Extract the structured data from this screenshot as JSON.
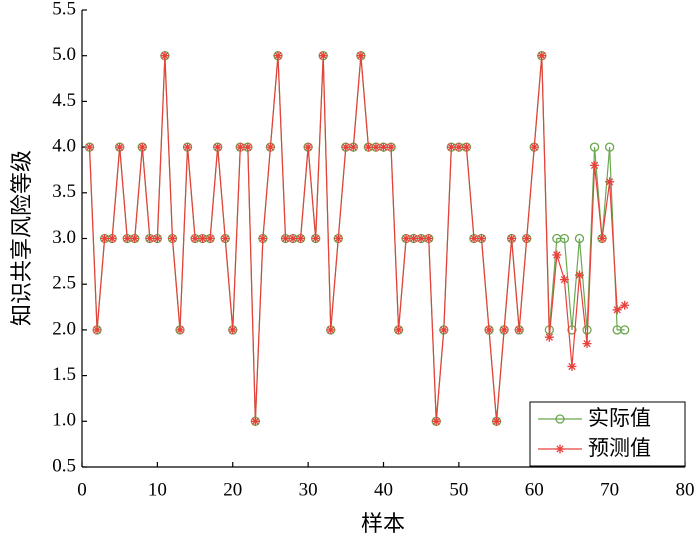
{
  "chart_data": {
    "type": "line",
    "x_label": "样本",
    "y_label": "知识共享风险等级",
    "x": [
      1,
      2,
      3,
      4,
      5,
      6,
      7,
      8,
      9,
      10,
      11,
      12,
      13,
      14,
      15,
      16,
      17,
      18,
      19,
      20,
      21,
      22,
      23,
      24,
      25,
      26,
      27,
      28,
      29,
      30,
      31,
      32,
      33,
      34,
      35,
      36,
      37,
      38,
      39,
      40,
      41,
      42,
      43,
      44,
      45,
      46,
      47,
      48,
      49,
      50,
      51,
      52,
      53,
      54,
      55,
      56,
      57,
      58,
      59,
      60,
      61,
      62,
      63,
      64,
      65,
      66,
      67,
      68,
      69,
      70,
      71,
      72
    ],
    "series": [
      {
        "name": "实际值",
        "color": "#6aa84f",
        "marker": "circle",
        "values": [
          4,
          2,
          3,
          3,
          4,
          3,
          3,
          4,
          3,
          3,
          5,
          3,
          2,
          4,
          3,
          3,
          3,
          4,
          3,
          2,
          4,
          4,
          1,
          3,
          4,
          5,
          3,
          3,
          3,
          4,
          3,
          5,
          2,
          3,
          4,
          4,
          5,
          4,
          4,
          4,
          4,
          2,
          3,
          3,
          3,
          3,
          1,
          2,
          4,
          4,
          4,
          3,
          3,
          2,
          1,
          2,
          3,
          2,
          3,
          4,
          5,
          2,
          3,
          3,
          2,
          3,
          2,
          4,
          3,
          4,
          2,
          2
        ]
      },
      {
        "name": "预测值",
        "color": "#e8413c",
        "marker": "star",
        "values": [
          4,
          2,
          3,
          3,
          4,
          3,
          3,
          4,
          3,
          3,
          5,
          3,
          2,
          4,
          3,
          3,
          3,
          4,
          3,
          2,
          4,
          4,
          1,
          3,
          4,
          5,
          3,
          3,
          3,
          4,
          3,
          5,
          2,
          3,
          4,
          4,
          5,
          4,
          4,
          4,
          4,
          2,
          3,
          3,
          3,
          3,
          1,
          2,
          4,
          4,
          4,
          3,
          3,
          2,
          1,
          2,
          3,
          2,
          3,
          4,
          5,
          1.92,
          2.82,
          2.55,
          1.6,
          2.6,
          1.85,
          3.8,
          3.0,
          3.62,
          2.22,
          2.27
        ]
      }
    ],
    "xlim": [
      0,
      80
    ],
    "xticks": [
      0,
      10,
      20,
      30,
      40,
      50,
      60,
      70,
      80
    ],
    "ylim": [
      0.5,
      5.5
    ],
    "yticks": [
      0.5,
      {
        "value": 1,
        "label": "1.0"
      },
      1.5,
      {
        "value": 2,
        "label": "2.0"
      },
      2.5,
      {
        "value": 3,
        "label": "3.0"
      },
      3.5,
      {
        "value": 4,
        "label": "4.0"
      },
      4.5,
      {
        "value": 5,
        "label": "5.0"
      },
      5.5
    ],
    "legend": "lower right"
  }
}
